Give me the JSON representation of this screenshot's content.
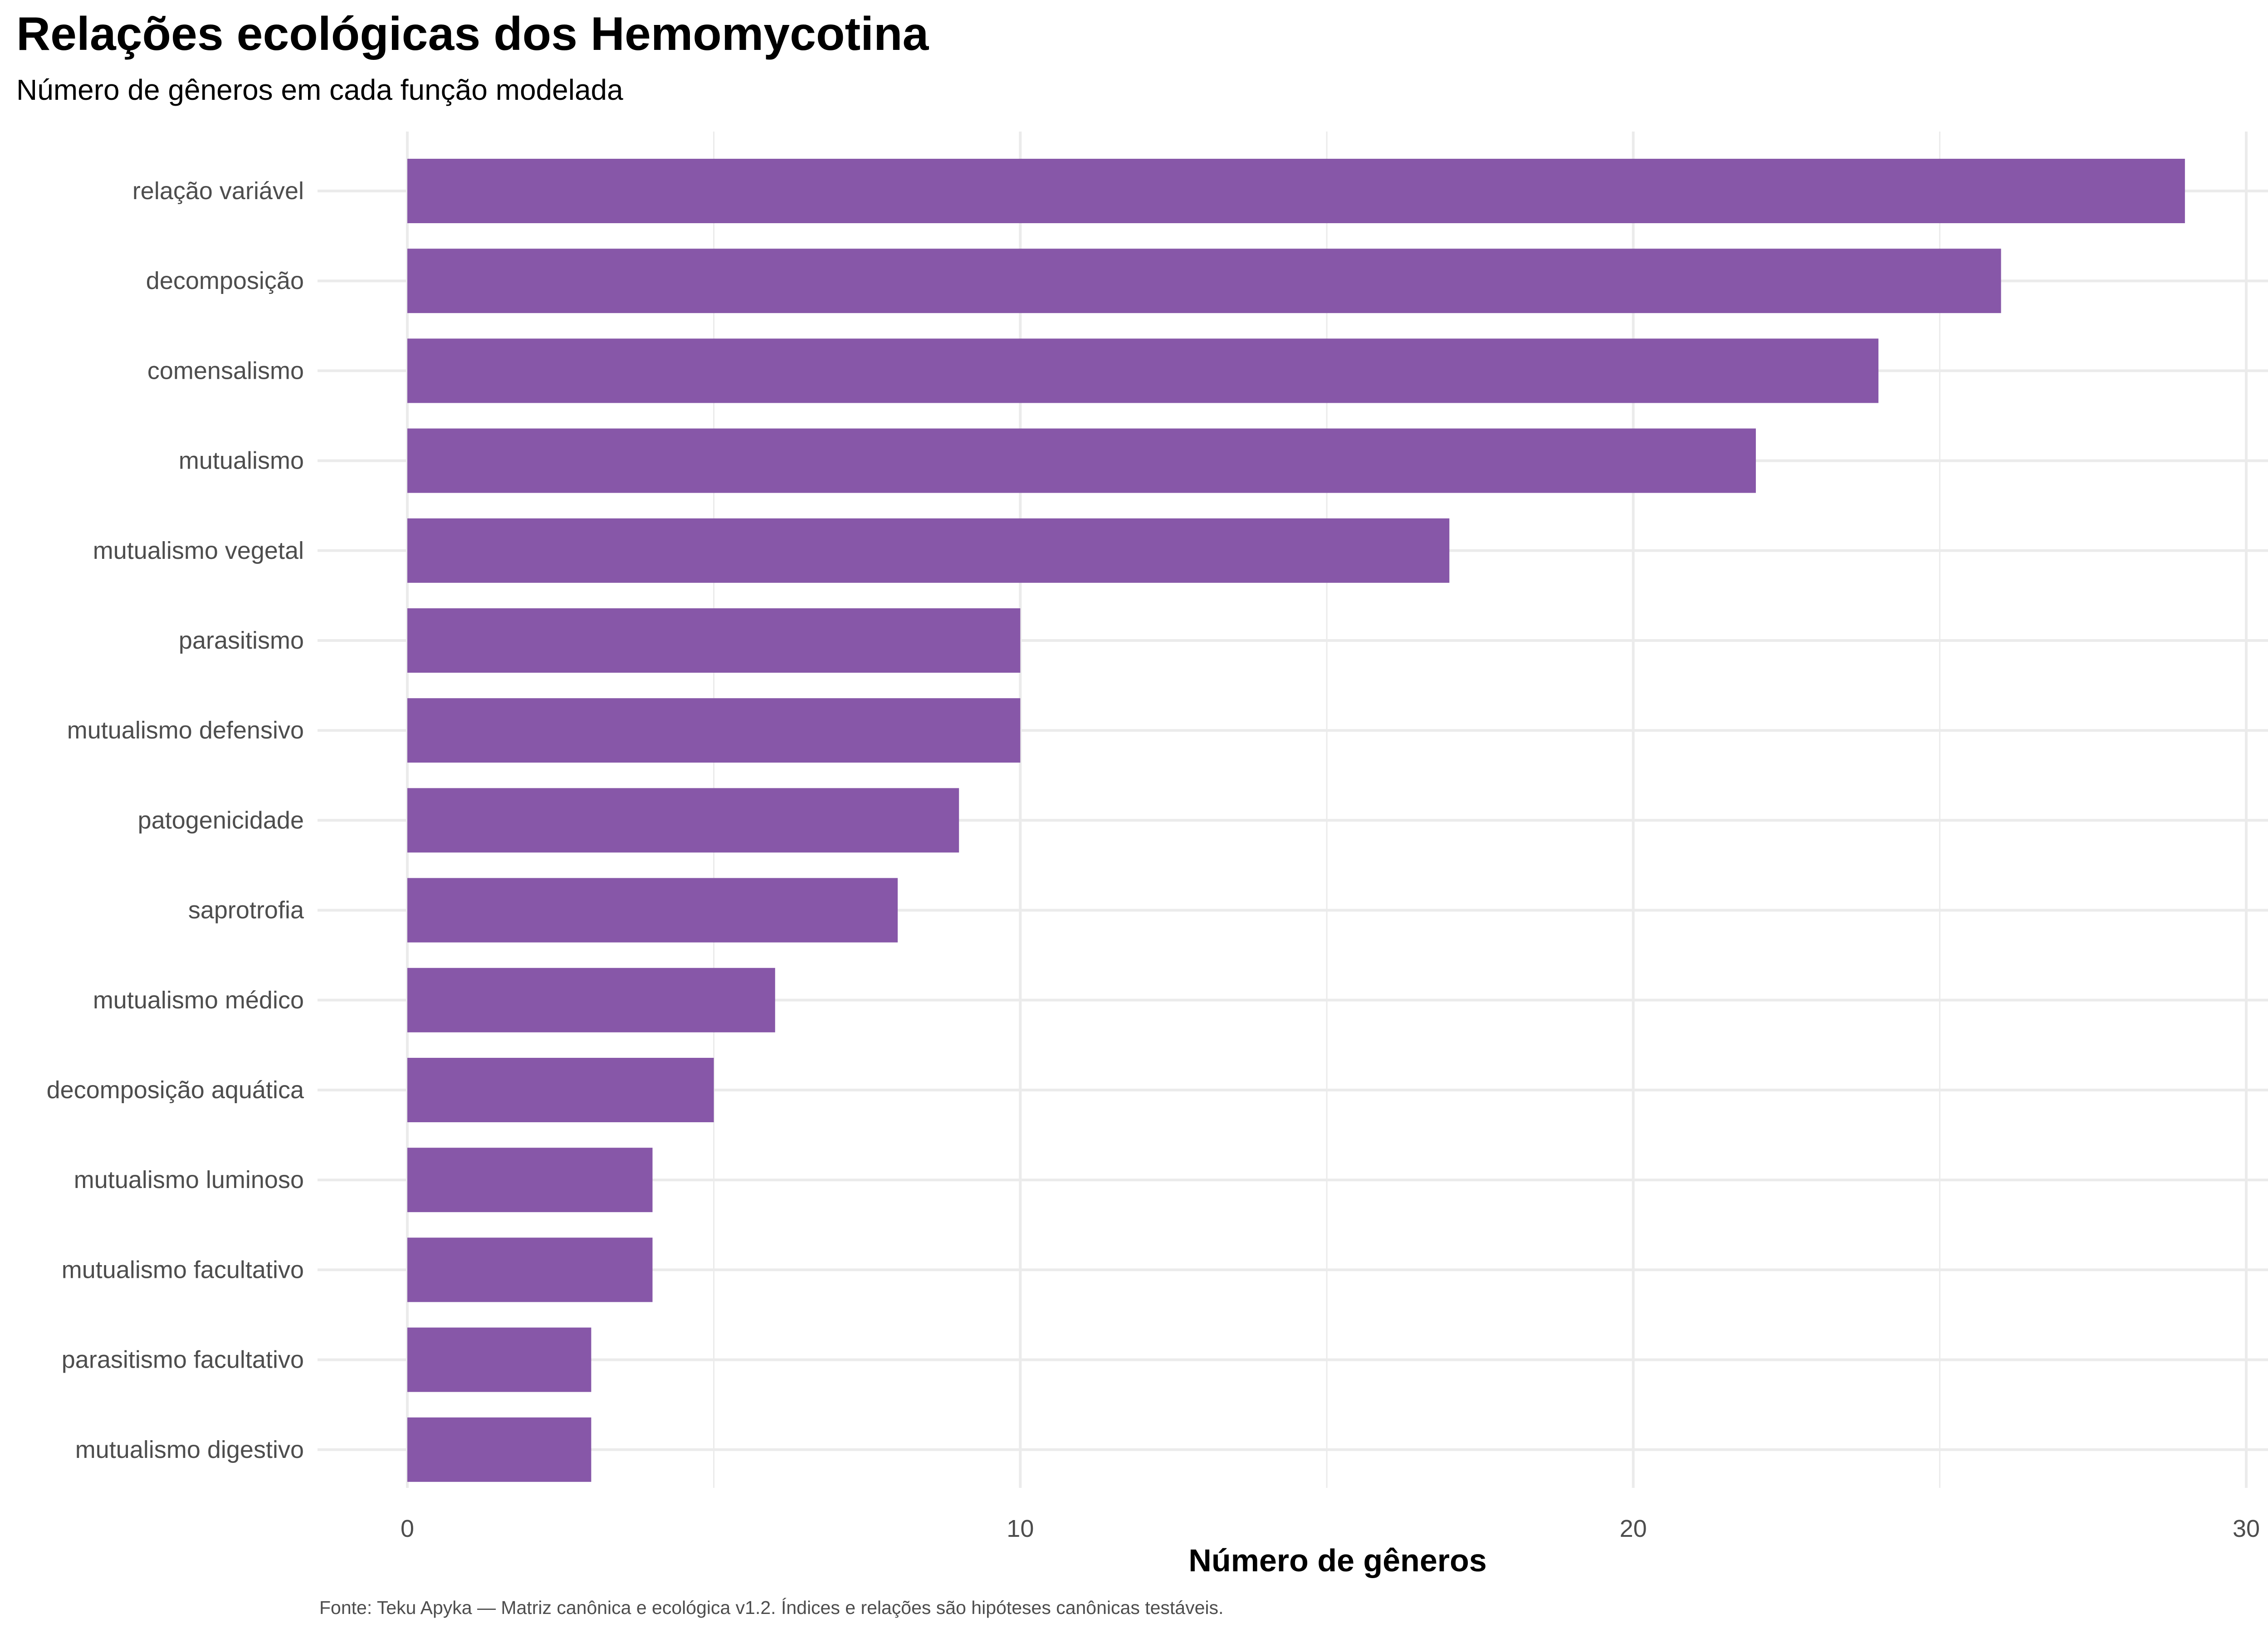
{
  "header": {
    "title": "Relações ecológicas dos Hemomycotina",
    "subtitle": "Número de gêneros em cada função modelada"
  },
  "caption": "Fonte: Teku Apyka — Matriz canônica e ecológica v1.2. Índices e relações são hipóteses canônicas testáveis.",
  "colors": {
    "bar": "#8757a8",
    "grid": "#ebebeb",
    "tick_text": "#4d4d4d"
  },
  "chart_data": {
    "type": "bar",
    "orientation": "horizontal",
    "title": "Relações ecológicas dos Hemomycotina",
    "subtitle": "Número de gêneros em cada função modelada",
    "xlabel": "Número de gêneros",
    "ylabel": "",
    "xlim": [
      0,
      30
    ],
    "x_ticks": [
      0,
      10,
      20,
      30
    ],
    "grid": true,
    "legend": "none",
    "categories": [
      "relação variável",
      "decomposição",
      "comensalismo",
      "mutualismo",
      "mutualismo vegetal",
      "parasitismo",
      "mutualismo defensivo",
      "patogenicidade",
      "saprotrofia",
      "mutualismo médico",
      "decomposição aquática",
      "mutualismo luminoso",
      "mutualismo facultativo",
      "parasitismo facultativo",
      "mutualismo digestivo"
    ],
    "values": [
      29,
      26,
      24,
      22,
      17,
      10,
      10,
      9,
      8,
      6,
      5,
      4,
      4,
      3,
      3
    ]
  }
}
